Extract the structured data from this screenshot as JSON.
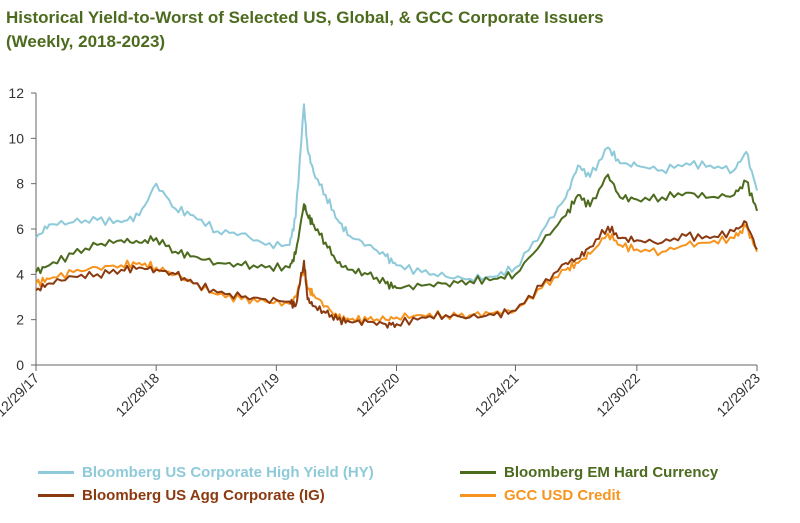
{
  "title_line1": "Historical Yield-to-Worst of Selected US, Global, & GCC Corporate Issuers",
  "title_line2": "(Weekly, 2018-2023)",
  "colors": {
    "hy": "#8ecad9",
    "em": "#4d6b1e",
    "ig": "#8b3a10",
    "gcc": "#f7941e",
    "axis": "#666666",
    "title": "#4d6b1e"
  },
  "chart_data": {
    "type": "line",
    "title": "Historical Yield-to-Worst of Selected US, Global, & GCC Corporate Issuers (Weekly, 2018-2023)",
    "xlabel": "",
    "ylabel": "",
    "ylim": [
      0,
      12
    ],
    "yticks": [
      "0",
      "2",
      "4",
      "6",
      "8",
      "10",
      "12"
    ],
    "xlim": [
      2017.99,
      2023.99
    ],
    "xticks": [
      {
        "label": "12/29/17",
        "x": 2017.99
      },
      {
        "label": "12/28/18",
        "x": 2018.99
      },
      {
        "label": "12/27/19",
        "x": 2019.99
      },
      {
        "label": "12/25/20",
        "x": 2020.99
      },
      {
        "label": "12/24/21",
        "x": 2021.98
      },
      {
        "label": "12/30/22",
        "x": 2022.99
      },
      {
        "label": "12/29/23",
        "x": 2023.99
      }
    ],
    "legend_position": "bottom",
    "series": [
      {
        "key": "hy",
        "name": "Bloomberg US Corporate High Yield (HY)",
        "x": [
          2017.99,
          2018.1,
          2018.3,
          2018.5,
          2018.7,
          2018.85,
          2018.99,
          2019.15,
          2019.3,
          2019.5,
          2019.7,
          2019.9,
          2020.1,
          2020.15,
          2020.22,
          2020.25,
          2020.3,
          2020.4,
          2020.5,
          2020.6,
          2020.75,
          2020.9,
          2020.99,
          2021.2,
          2021.4,
          2021.6,
          2021.8,
          2021.98,
          2022.2,
          2022.4,
          2022.5,
          2022.6,
          2022.75,
          2022.85,
          2022.99,
          2023.2,
          2023.4,
          2023.6,
          2023.8,
          2023.9,
          2023.99
        ],
        "values": [
          5.6,
          6.2,
          6.3,
          6.4,
          6.3,
          6.6,
          8.0,
          6.9,
          6.6,
          5.9,
          5.8,
          5.3,
          5.3,
          6.5,
          11.5,
          9.5,
          8.5,
          7.5,
          6.4,
          5.7,
          5.3,
          4.8,
          4.4,
          4.1,
          3.9,
          3.8,
          3.9,
          4.3,
          5.9,
          7.4,
          8.8,
          8.3,
          9.6,
          8.9,
          8.8,
          8.6,
          8.9,
          8.8,
          8.6,
          9.4,
          7.7
        ]
      },
      {
        "key": "em",
        "name": "Bloomberg EM Hard Currency",
        "x": [
          2017.99,
          2018.1,
          2018.3,
          2018.5,
          2018.7,
          2018.85,
          2018.99,
          2019.15,
          2019.3,
          2019.5,
          2019.7,
          2019.9,
          2020.1,
          2020.15,
          2020.22,
          2020.25,
          2020.3,
          2020.4,
          2020.5,
          2020.6,
          2020.75,
          2020.9,
          2020.99,
          2021.2,
          2021.4,
          2021.6,
          2021.8,
          2021.98,
          2022.2,
          2022.4,
          2022.5,
          2022.6,
          2022.75,
          2022.85,
          2022.99,
          2023.2,
          2023.4,
          2023.6,
          2023.8,
          2023.9,
          2023.99
        ],
        "values": [
          4.1,
          4.4,
          4.9,
          5.3,
          5.5,
          5.4,
          5.6,
          5.0,
          4.8,
          4.5,
          4.4,
          4.3,
          4.3,
          4.9,
          7.1,
          6.6,
          6.2,
          5.4,
          4.5,
          4.2,
          4.0,
          3.6,
          3.4,
          3.5,
          3.6,
          3.7,
          3.8,
          4.0,
          5.4,
          6.6,
          7.5,
          7.0,
          8.4,
          7.4,
          7.3,
          7.4,
          7.6,
          7.4,
          7.5,
          8.1,
          6.8
        ]
      },
      {
        "key": "ig",
        "name": "Bloomberg US Agg Corporate  (IG)",
        "x": [
          2017.99,
          2018.1,
          2018.3,
          2018.5,
          2018.7,
          2018.85,
          2018.99,
          2019.15,
          2019.3,
          2019.5,
          2019.7,
          2019.9,
          2020.1,
          2020.15,
          2020.22,
          2020.25,
          2020.3,
          2020.4,
          2020.5,
          2020.6,
          2020.75,
          2020.9,
          2020.99,
          2021.2,
          2021.4,
          2021.6,
          2021.8,
          2021.98,
          2022.2,
          2022.4,
          2022.5,
          2022.6,
          2022.75,
          2022.85,
          2022.99,
          2023.2,
          2023.4,
          2023.6,
          2023.8,
          2023.9,
          2023.99
        ],
        "values": [
          3.3,
          3.6,
          3.9,
          4.0,
          4.2,
          4.3,
          4.2,
          4.0,
          3.6,
          3.2,
          3.0,
          2.9,
          2.8,
          2.6,
          4.6,
          2.9,
          2.6,
          2.3,
          2.0,
          1.9,
          1.9,
          1.8,
          1.8,
          2.1,
          2.2,
          2.1,
          2.2,
          2.4,
          3.5,
          4.5,
          4.7,
          5.2,
          6.1,
          5.6,
          5.5,
          5.4,
          5.7,
          5.6,
          5.9,
          6.3,
          5.1
        ]
      },
      {
        "key": "gcc",
        "name": "GCC USD Credit",
        "x": [
          2017.99,
          2018.1,
          2018.3,
          2018.5,
          2018.7,
          2018.85,
          2018.99,
          2019.15,
          2019.3,
          2019.5,
          2019.7,
          2019.9,
          2020.1,
          2020.15,
          2020.22,
          2020.25,
          2020.3,
          2020.4,
          2020.5,
          2020.6,
          2020.75,
          2020.9,
          2020.99,
          2021.2,
          2021.4,
          2021.6,
          2021.8,
          2021.98,
          2022.2,
          2022.4,
          2022.5,
          2022.6,
          2022.75,
          2022.85,
          2022.99,
          2023.2,
          2023.4,
          2023.6,
          2023.8,
          2023.9,
          2023.99
        ],
        "values": [
          3.6,
          3.8,
          4.1,
          4.3,
          4.4,
          4.5,
          4.3,
          4.0,
          3.6,
          3.1,
          2.9,
          2.8,
          2.7,
          3.0,
          4.3,
          3.4,
          3.1,
          2.6,
          2.1,
          2.0,
          2.0,
          2.0,
          2.1,
          2.2,
          2.2,
          2.2,
          2.3,
          2.4,
          3.4,
          4.2,
          4.5,
          4.9,
          5.8,
          5.3,
          5.1,
          5.0,
          5.3,
          5.4,
          5.6,
          6.1,
          5.0
        ]
      }
    ]
  },
  "legend": [
    {
      "key": "hy",
      "label": "Bloomberg US Corporate High Yield (HY)"
    },
    {
      "key": "em",
      "label": "Bloomberg EM Hard Currency"
    },
    {
      "key": "ig",
      "label": "Bloomberg US Agg Corporate  (IG)"
    },
    {
      "key": "gcc",
      "label": "GCC USD Credit"
    }
  ]
}
